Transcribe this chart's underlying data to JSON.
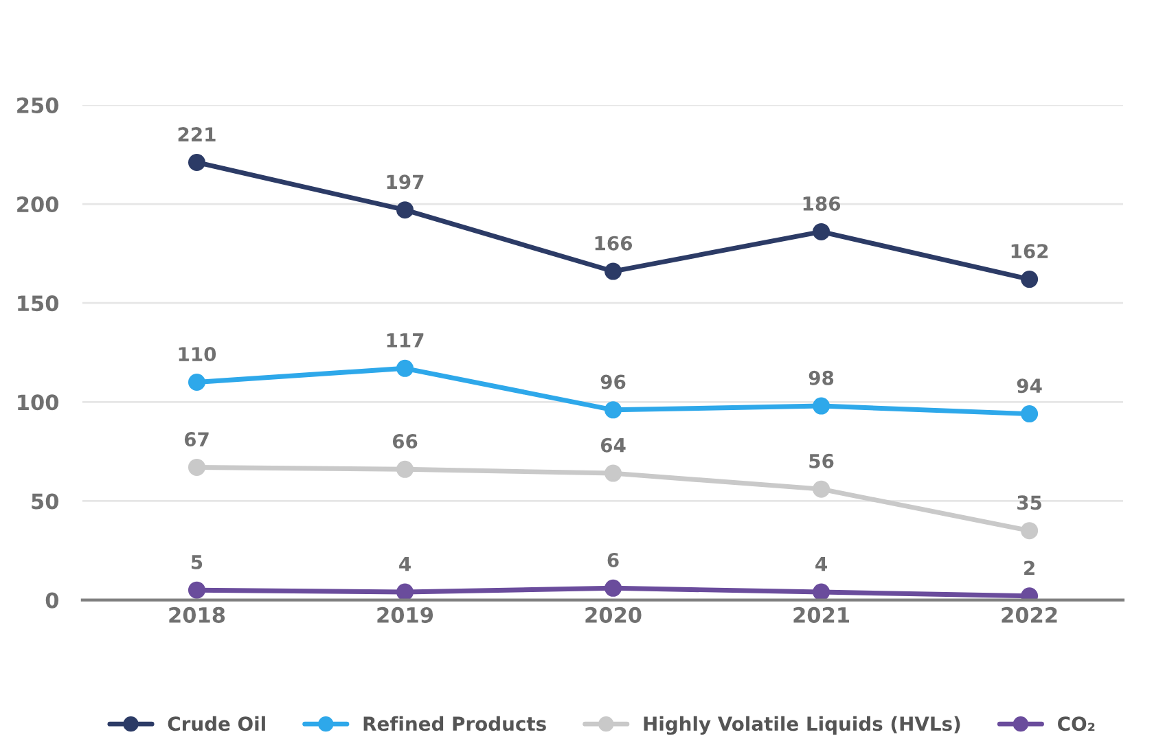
{
  "chart_data": {
    "type": "line",
    "categories": [
      "2018",
      "2019",
      "2020",
      "2021",
      "2022"
    ],
    "series": [
      {
        "name": "Crude Oil",
        "color": "#2c3b66",
        "values": [
          221,
          197,
          166,
          186,
          162
        ]
      },
      {
        "name": "Refined Products",
        "color": "#2ea8ea",
        "values": [
          110,
          117,
          96,
          98,
          94
        ]
      },
      {
        "name": "Highly Volatile Liquids (HVLs)",
        "color": "#c9c9c9",
        "values": [
          67,
          66,
          64,
          56,
          35
        ]
      },
      {
        "name": "CO₂",
        "color": "#6a4c9c",
        "values": [
          5,
          4,
          6,
          4,
          2
        ]
      }
    ],
    "ylim": [
      0,
      250
    ],
    "yticks": [
      0,
      50,
      100,
      150,
      200,
      250
    ],
    "grid": "y",
    "marker": "circle",
    "line_style": "solid",
    "data_labels": true,
    "legend": "bottom"
  }
}
